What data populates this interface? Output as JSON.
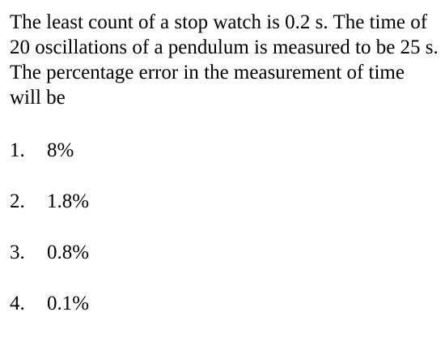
{
  "question": {
    "text": "The least count of a stop watch is 0.2 s. The time of 20 oscillations of a pendulum is measured to be 25 s. The percentage error in the measurement of time will be"
  },
  "options": [
    {
      "number": "1.",
      "text": "8%"
    },
    {
      "number": "2.",
      "text": "1.8%"
    },
    {
      "number": "3.",
      "text": "0.8%"
    },
    {
      "number": "4.",
      "text": "0.1%"
    }
  ]
}
